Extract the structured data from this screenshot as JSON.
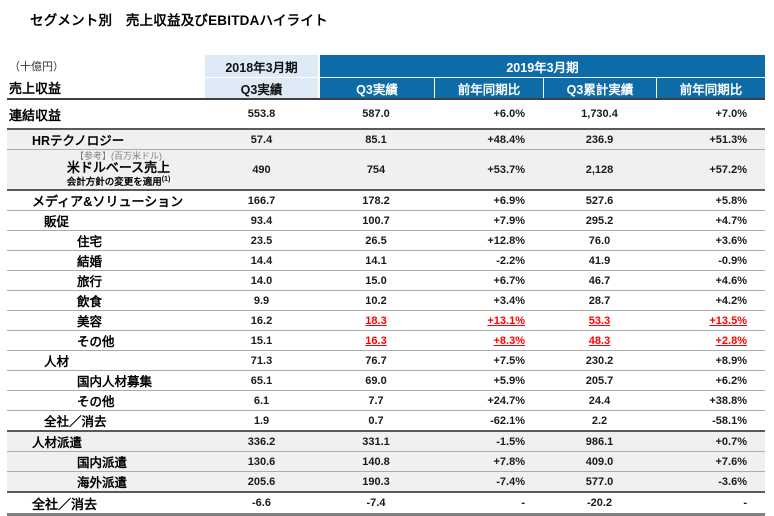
{
  "title": "セグメント別　売上収益及びEBITDAハイライト",
  "unit_label": "（十億円）",
  "row_header_label": "売上収益",
  "columns": {
    "fy2018": {
      "title": "2018年3月期",
      "sub": "Q3実績"
    },
    "fy2019": {
      "title": "2019年3月期",
      "subs": [
        "Q3実績",
        "前年同期比",
        "Q3累計実績",
        "前年同期比"
      ]
    }
  },
  "rows": [
    {
      "label": "連結収益",
      "indent": 0,
      "size": "lg",
      "height": "lg",
      "rule": "none",
      "shaded": false,
      "values": [
        "553.8",
        "587.0",
        "+6.0%",
        "1,730.4",
        "+7.0%"
      ]
    },
    {
      "label": "HRテクノロジー",
      "indent": 1,
      "rule": "strong",
      "shaded": true,
      "values": [
        "57.4",
        "85.1",
        "+48.4%",
        "236.9",
        "+51.3%"
      ]
    },
    {
      "label": "米ドルベース売上",
      "note_top": "【参考】(百万米ドル)",
      "note_bottom": "会計方針の変更を適用",
      "footnote_sup": "(1)",
      "indent": 1,
      "size": "lg",
      "height": "usd",
      "rule": "thin",
      "shaded": true,
      "values": [
        "490",
        "754",
        "+53.7%",
        "2,128",
        "+57.2%"
      ]
    },
    {
      "label": "メディア&ソリューション",
      "indent": 1,
      "size": "lg",
      "height": "sm",
      "rule": "strong",
      "shaded": false,
      "values": [
        "166.7",
        "178.2",
        "+6.9%",
        "527.6",
        "+5.8%"
      ]
    },
    {
      "label": "販促",
      "indent": 2,
      "rule": "thin",
      "shaded": false,
      "values": [
        "93.4",
        "100.7",
        "+7.9%",
        "295.2",
        "+4.7%"
      ]
    },
    {
      "label": "住宅",
      "indent": 3,
      "rule": "thin",
      "shaded": false,
      "values": [
        "23.5",
        "26.5",
        "+12.8%",
        "76.0",
        "+3.6%"
      ]
    },
    {
      "label": "結婚",
      "indent": 3,
      "rule": "thin",
      "shaded": false,
      "values": [
        "14.4",
        "14.1",
        "-2.2%",
        "41.9",
        "-0.9%"
      ]
    },
    {
      "label": "旅行",
      "indent": 3,
      "rule": "thin",
      "shaded": false,
      "values": [
        "14.0",
        "15.0",
        "+6.7%",
        "46.7",
        "+4.6%"
      ]
    },
    {
      "label": "飲食",
      "indent": 3,
      "rule": "thin",
      "shaded": false,
      "values": [
        "9.9",
        "10.2",
        "+3.4%",
        "28.7",
        "+4.2%"
      ]
    },
    {
      "label": "美容",
      "indent": 3,
      "rule": "thin",
      "shaded": false,
      "red_cols": [
        1,
        2,
        3,
        4
      ],
      "values": [
        "16.2",
        "18.3",
        "+13.1%",
        "53.3",
        "+13.5%"
      ]
    },
    {
      "label": "その他",
      "indent": 3,
      "rule": "thin",
      "shaded": false,
      "red_cols": [
        1,
        2,
        3,
        4
      ],
      "values": [
        "15.1",
        "16.3",
        "+8.3%",
        "48.3",
        "+2.8%"
      ]
    },
    {
      "label": "人材",
      "indent": 2,
      "rule": "thin",
      "shaded": false,
      "values": [
        "71.3",
        "76.7",
        "+7.5%",
        "230.2",
        "+8.9%"
      ]
    },
    {
      "label": "国内人材募集",
      "indent": 3,
      "rule": "thin",
      "shaded": false,
      "values": [
        "65.1",
        "69.0",
        "+5.9%",
        "205.7",
        "+6.2%"
      ]
    },
    {
      "label": "その他",
      "indent": 3,
      "rule": "thin",
      "shaded": false,
      "values": [
        "6.1",
        "7.7",
        "+24.7%",
        "24.4",
        "+38.8%"
      ]
    },
    {
      "label": "全社／消去",
      "indent": 2,
      "rule": "thin",
      "shaded": false,
      "values": [
        "1.9",
        "0.7",
        "-62.1%",
        "2.2",
        "-58.1%"
      ]
    },
    {
      "label": "人材派遣",
      "indent": 1,
      "rule": "strong",
      "shaded": true,
      "values": [
        "336.2",
        "331.1",
        "-1.5%",
        "986.1",
        "+0.7%"
      ]
    },
    {
      "label": "国内派遣",
      "indent": 3,
      "rule": "thin",
      "shaded": true,
      "values": [
        "130.6",
        "140.8",
        "+7.8%",
        "409.0",
        "+7.6%"
      ]
    },
    {
      "label": "海外派遣",
      "indent": 3,
      "rule": "thin",
      "shaded": true,
      "values": [
        "205.6",
        "190.3",
        "-7.4%",
        "577.0",
        "-3.6%"
      ]
    },
    {
      "label": "全社／消去",
      "indent": 1,
      "size": "lg",
      "height": "last",
      "rule": "strong",
      "shaded": false,
      "values": [
        "-6.6",
        "-7.4",
        "-",
        "-20.2",
        "-"
      ]
    }
  ],
  "colors": {
    "header_dark_blue": "#0D6CA8",
    "header_light_blue": "#DEEAF6",
    "row_shading": "#F0F0F0",
    "highlight_red": "#FF0000"
  }
}
